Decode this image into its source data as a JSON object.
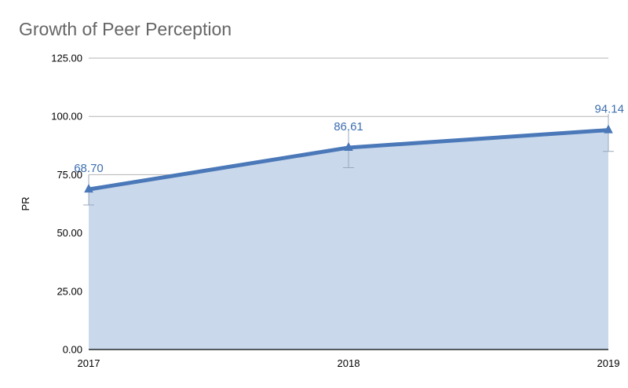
{
  "chart_data": {
    "type": "area",
    "title": "Growth of Peer Perception",
    "xlabel": "",
    "ylabel": "PR",
    "categories": [
      "2017",
      "2018",
      "2019"
    ],
    "series": [
      {
        "values": [
          68.7,
          86.61,
          94.14
        ],
        "data_labels": [
          "68.70",
          "86.61",
          "94.14"
        ],
        "error_low": [
          62.0,
          78.0,
          85.0
        ],
        "error_high": [
          75.0,
          94.0,
          101.0
        ]
      }
    ],
    "ylim": [
      0,
      125
    ],
    "yticks": [
      0,
      25,
      50,
      75,
      100,
      125
    ],
    "ytick_labels": [
      "0.00",
      "25.00",
      "50.00",
      "75.00",
      "100.00",
      "125.00"
    ],
    "grid": true,
    "colors": {
      "line": "#4a78b8",
      "fill": "#c9d8eb",
      "label": "#3f6fb0",
      "grid": "#b3b3b3",
      "error": "#9aa9bd"
    }
  }
}
